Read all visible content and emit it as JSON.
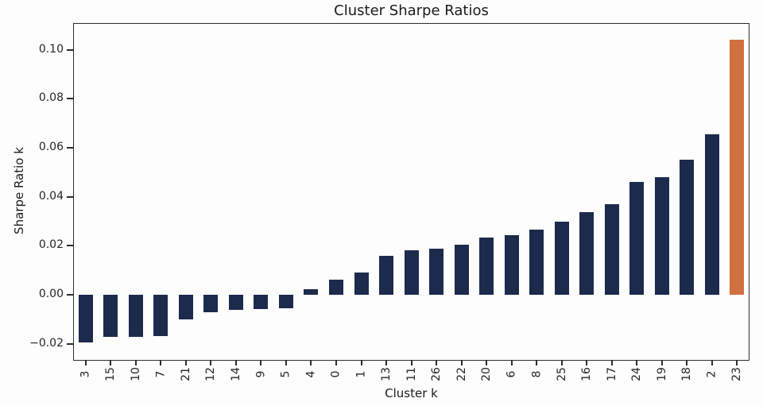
{
  "chart_data": {
    "type": "bar",
    "title": "Cluster Sharpe Ratios",
    "xlabel": "Cluster k",
    "ylabel": "Sharpe Ratio k",
    "categories": [
      "3",
      "15",
      "10",
      "7",
      "21",
      "12",
      "14",
      "9",
      "5",
      "4",
      "0",
      "1",
      "13",
      "11",
      "26",
      "22",
      "20",
      "6",
      "8",
      "25",
      "16",
      "17",
      "24",
      "19",
      "18",
      "2",
      "23"
    ],
    "values": [
      -0.0196,
      -0.0173,
      -0.0171,
      -0.017,
      -0.01,
      -0.007,
      -0.0063,
      -0.0058,
      -0.0055,
      0.0023,
      0.0062,
      0.0091,
      0.016,
      0.0183,
      0.0189,
      0.0203,
      0.0233,
      0.0243,
      0.0265,
      0.0297,
      0.0337,
      0.0369,
      0.0462,
      0.048,
      0.0552,
      0.0656,
      0.104
    ],
    "yticks": [
      -0.02,
      0.0,
      0.02,
      0.04,
      0.06,
      0.08,
      0.1
    ],
    "ytick_labels": [
      "−0.02",
      "0.00",
      "0.02",
      "0.04",
      "0.06",
      "0.08",
      "0.10"
    ],
    "ylim": [
      -0.0269,
      0.1109
    ],
    "grid": false,
    "legend": null,
    "bar_color": "#1c2a4b",
    "highlight_color": "#d0703f",
    "highlight_category": "23"
  }
}
